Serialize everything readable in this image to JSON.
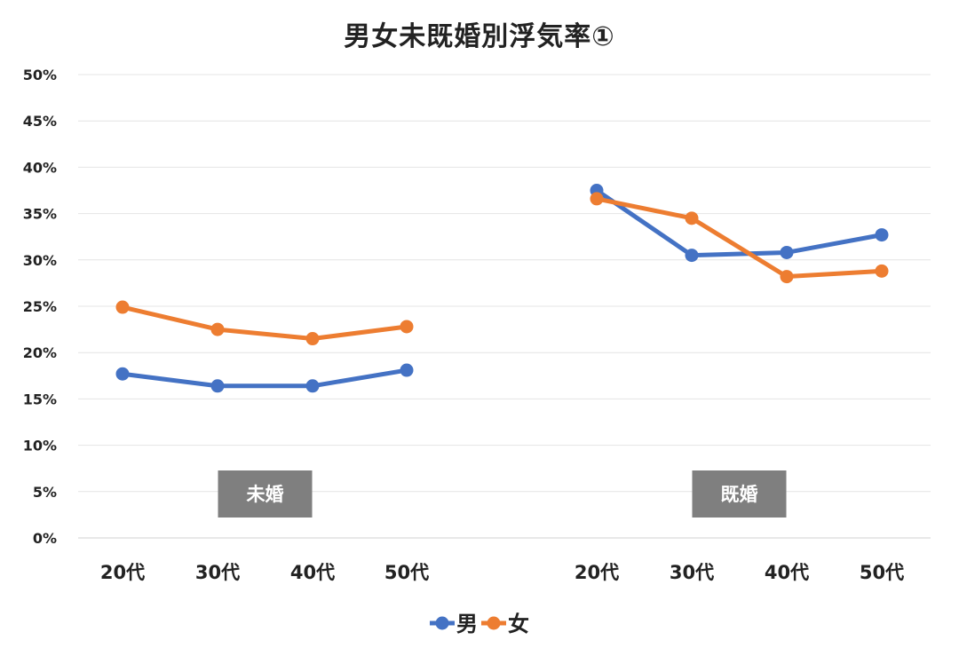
{
  "chart_data": {
    "type": "line",
    "title": "男女未既婚別浮気率①",
    "xlabel": "",
    "ylabel": "",
    "ylim": [
      0,
      0.5
    ],
    "yticks": [
      "0%",
      "5%",
      "10%",
      "15%",
      "20%",
      "25%",
      "30%",
      "35%",
      "40%",
      "45%",
      "50%"
    ],
    "grid": true,
    "legend_position": "bottom",
    "groups": [
      {
        "label": "未婚",
        "categories": [
          "20代",
          "30代",
          "40代",
          "50代"
        ],
        "series": [
          {
            "name": "男",
            "color": "#4472C4",
            "values": [
              0.177,
              0.164,
              0.164,
              0.181
            ]
          },
          {
            "name": "女",
            "color": "#ED7D31",
            "values": [
              0.249,
              0.225,
              0.215,
              0.228
            ]
          }
        ]
      },
      {
        "label": "既婚",
        "categories": [
          "20代",
          "30代",
          "40代",
          "50代"
        ],
        "series": [
          {
            "name": "男",
            "color": "#4472C4",
            "values": [
              0.375,
              0.305,
              0.308,
              0.327
            ]
          },
          {
            "name": "女",
            "color": "#ED7D31",
            "values": [
              0.366,
              0.345,
              0.282,
              0.288
            ]
          }
        ]
      }
    ],
    "legend": [
      {
        "name": "男",
        "color": "#4472C4"
      },
      {
        "name": "女",
        "color": "#ED7D31"
      }
    ]
  }
}
